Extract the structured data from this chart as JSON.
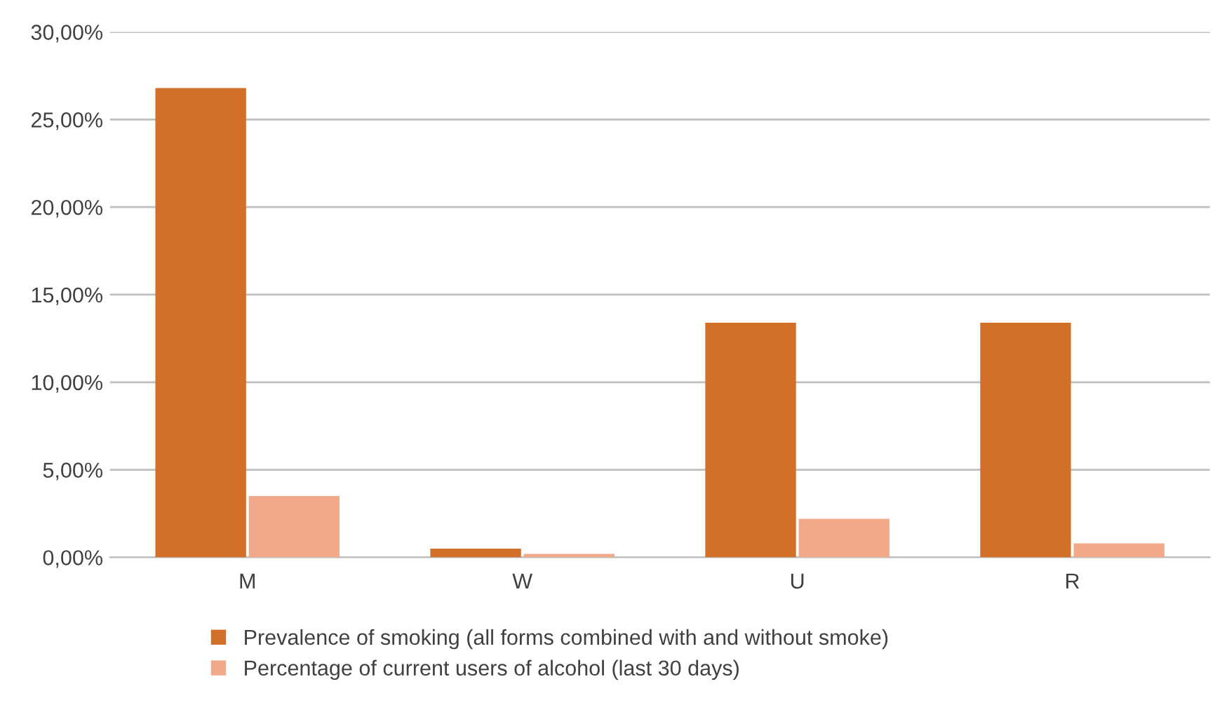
{
  "chart_data": {
    "type": "bar",
    "categories": [
      "M",
      "W",
      "U",
      "R"
    ],
    "series": [
      {
        "name": "Prevalence of smoking (all forms combined with and without smoke)",
        "color": "#d2702a",
        "values": [
          26.8,
          0.5,
          13.4,
          13.4
        ]
      },
      {
        "name": "Percentage of current users of alcohol (last 30 days)",
        "color": "#f2a98a",
        "values": [
          3.5,
          0.2,
          2.2,
          0.8
        ]
      }
    ],
    "ylim": [
      0,
      30
    ],
    "yticks": [
      {
        "value": 0,
        "label": "0,00%"
      },
      {
        "value": 5,
        "label": "5,00%"
      },
      {
        "value": 10,
        "label": "10,00%"
      },
      {
        "value": 15,
        "label": "15,00%"
      },
      {
        "value": 20,
        "label": "20,00%"
      },
      {
        "value": 25,
        "label": "25,00%"
      },
      {
        "value": 30,
        "label": "30,00%"
      }
    ],
    "grid": "y",
    "legend": "bottom"
  }
}
